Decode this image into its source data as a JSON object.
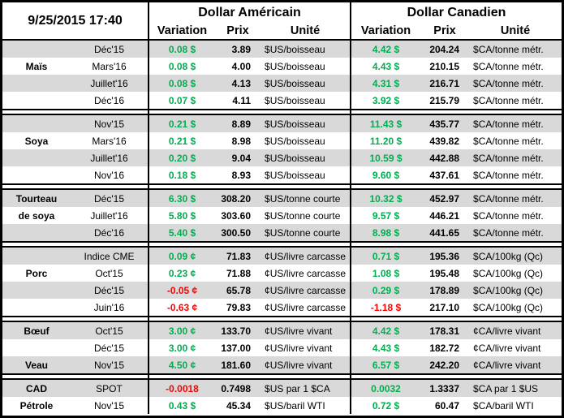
{
  "header": {
    "timestamp": "9/25/2015 17:40",
    "usd_group": "Dollar Américain",
    "cad_group": "Dollar Canadien",
    "col_variation": "Variation",
    "col_prix": "Prix",
    "col_unite": "Unité"
  },
  "colors": {
    "positive": "#00B050",
    "negative": "#FF0000",
    "stripe": "#D9D9D9"
  },
  "sections": [
    {
      "rows": [
        {
          "cat": "",
          "month": "Déc'15",
          "us_var": "0.08 $",
          "us_prix": "3.89",
          "us_unit": "$US/boisseau",
          "ca_var": "4.42 $",
          "ca_prix": "204.24",
          "ca_unit": "$CA/tonne métr."
        },
        {
          "cat": "Maïs",
          "month": "Mars'16",
          "us_var": "0.08 $",
          "us_prix": "4.00",
          "us_unit": "$US/boisseau",
          "ca_var": "4.43 $",
          "ca_prix": "210.15",
          "ca_unit": "$CA/tonne métr."
        },
        {
          "cat": "",
          "month": "Juillet'16",
          "us_var": "0.08 $",
          "us_prix": "4.13",
          "us_unit": "$US/boisseau",
          "ca_var": "4.31 $",
          "ca_prix": "216.71",
          "ca_unit": "$CA/tonne métr."
        },
        {
          "cat": "",
          "month": "Déc'16",
          "us_var": "0.07 $",
          "us_prix": "4.11",
          "us_unit": "$US/boisseau",
          "ca_var": "3.92 $",
          "ca_prix": "215.79",
          "ca_unit": "$CA/tonne métr."
        }
      ]
    },
    {
      "rows": [
        {
          "cat": "",
          "month": "Nov'15",
          "us_var": "0.21 $",
          "us_prix": "8.89",
          "us_unit": "$US/boisseau",
          "ca_var": "11.43 $",
          "ca_prix": "435.77",
          "ca_unit": "$CA/tonne métr."
        },
        {
          "cat": "Soya",
          "month": "Mars'16",
          "us_var": "0.21 $",
          "us_prix": "8.98",
          "us_unit": "$US/boisseau",
          "ca_var": "11.20 $",
          "ca_prix": "439.82",
          "ca_unit": "$CA/tonne métr."
        },
        {
          "cat": "",
          "month": "Juillet'16",
          "us_var": "0.20 $",
          "us_prix": "9.04",
          "us_unit": "$US/boisseau",
          "ca_var": "10.59 $",
          "ca_prix": "442.88",
          "ca_unit": "$CA/tonne métr."
        },
        {
          "cat": "",
          "month": "Nov'16",
          "us_var": "0.18 $",
          "us_prix": "8.93",
          "us_unit": "$US/boisseau",
          "ca_var": "9.60 $",
          "ca_prix": "437.61",
          "ca_unit": "$CA/tonne métr."
        }
      ]
    },
    {
      "rows": [
        {
          "cat": "Tourteau",
          "month": "Déc'15",
          "us_var": "6.30 $",
          "us_prix": "308.20",
          "us_unit": "$US/tonne courte",
          "ca_var": "10.32 $",
          "ca_prix": "452.97",
          "ca_unit": "$CA/tonne métr."
        },
        {
          "cat": "de soya",
          "month": "Juillet'16",
          "us_var": "5.80 $",
          "us_prix": "303.60",
          "us_unit": "$US/tonne courte",
          "ca_var": "9.57 $",
          "ca_prix": "446.21",
          "ca_unit": "$CA/tonne métr."
        },
        {
          "cat": "",
          "month": "Déc'16",
          "us_var": "5.40 $",
          "us_prix": "300.50",
          "us_unit": "$US/tonne courte",
          "ca_var": "8.98 $",
          "ca_prix": "441.65",
          "ca_unit": "$CA/tonne métr."
        }
      ]
    },
    {
      "rows": [
        {
          "cat": "",
          "month": "Indice CME",
          "us_var": "0.09 ¢",
          "us_prix": "71.83",
          "us_unit": "¢US/livre carcasse",
          "ca_var": "0.71 $",
          "ca_prix": "195.36",
          "ca_unit": "$CA/100kg (Qc)"
        },
        {
          "cat": "Porc",
          "month": "Oct'15",
          "us_var": "0.23 ¢",
          "us_prix": "71.88",
          "us_unit": "¢US/livre carcasse",
          "ca_var": "1.08 $",
          "ca_prix": "195.48",
          "ca_unit": "$CA/100kg (Qc)"
        },
        {
          "cat": "",
          "month": "Déc'15",
          "us_var": "-0.05 ¢",
          "us_prix": "65.78",
          "us_unit": "¢US/livre carcasse",
          "ca_var": "0.29 $",
          "ca_prix": "178.89",
          "ca_unit": "$CA/100kg (Qc)"
        },
        {
          "cat": "",
          "month": "Juin'16",
          "us_var": "-0.63 ¢",
          "us_prix": "79.83",
          "us_unit": "¢US/livre carcasse",
          "ca_var": "-1.18 $",
          "ca_prix": "217.10",
          "ca_unit": "$CA/100kg (Qc)"
        }
      ]
    },
    {
      "rows": [
        {
          "cat": "Bœuf",
          "month": "Oct'15",
          "us_var": "3.00 ¢",
          "us_prix": "133.70",
          "us_unit": "¢US/livre vivant",
          "ca_var": "4.42 $",
          "ca_prix": "178.31",
          "ca_unit": "¢CA/livre vivant"
        },
        {
          "cat": "",
          "month": "Déc'15",
          "us_var": "3.00 ¢",
          "us_prix": "137.00",
          "us_unit": "¢US/livre vivant",
          "ca_var": "4.43 $",
          "ca_prix": "182.72",
          "ca_unit": "¢CA/livre vivant"
        },
        {
          "cat": "Veau",
          "month": "Nov'15",
          "us_var": "4.50 ¢",
          "us_prix": "181.60",
          "us_unit": "¢US/livre vivant",
          "ca_var": "6.57 $",
          "ca_prix": "242.20",
          "ca_unit": "¢CA/livre vivant"
        }
      ]
    },
    {
      "rows": [
        {
          "cat": "CAD",
          "month": "SPOT",
          "us_var": "-0.0018",
          "us_prix": "0.7498",
          "us_unit": "$US par 1 $CA",
          "ca_var": "0.0032",
          "ca_prix": "1.3337",
          "ca_unit": "$CA par 1 $US"
        },
        {
          "cat": "Pétrole",
          "month": "Nov'15",
          "us_var": "0.43 $",
          "us_prix": "45.34",
          "us_unit": "$US/baril WTI",
          "ca_var": "0.72 $",
          "ca_prix": "60.47",
          "ca_unit": "$CA/baril WTI"
        }
      ]
    }
  ]
}
